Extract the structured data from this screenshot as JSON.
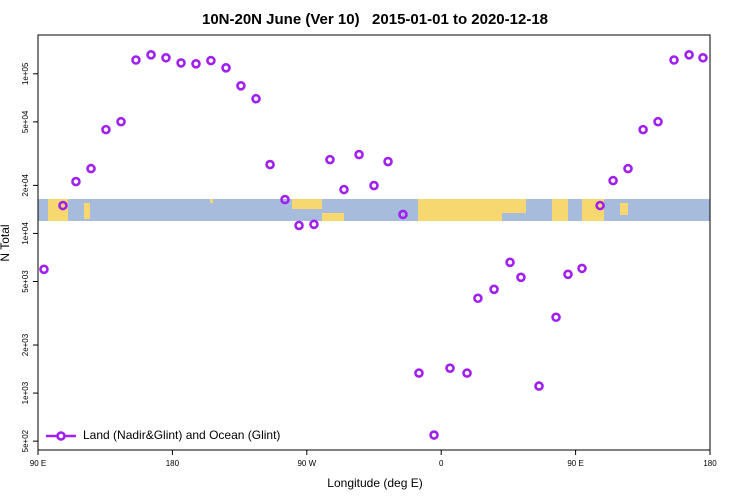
{
  "chart_data": {
    "type": "scatter",
    "title": "10N-20N June (Ver 10)   2015-01-01 to 2020-12-18",
    "x_label": "Longitude (deg E)",
    "y_label": "N Total",
    "ylog": true,
    "legend_position": "bottom-left",
    "xlim": [
      90,
      540
    ],
    "ylim": [
      440,
      175000
    ],
    "xticks": [
      {
        "value": 90,
        "label": "90 E"
      },
      180,
      {
        "value": 270,
        "label": "90 W"
      },
      {
        "value": 360,
        "label": "0"
      },
      {
        "value": 450,
        "label": "90 E"
      },
      {
        "value": 540,
        "label": "180"
      }
    ],
    "yticks": [
      {
        "value": 500,
        "label": "5e+02"
      },
      {
        "value": 1000,
        "label": "1e+03"
      },
      {
        "value": 2000,
        "label": "2e+03"
      },
      {
        "value": 5000,
        "label": "5e+03"
      },
      {
        "value": 10000,
        "label": "1e+04"
      },
      {
        "value": 20000,
        "label": "2e+04"
      },
      {
        "value": 50000,
        "label": "5e+04"
      },
      {
        "value": 100000,
        "label": "1e+05"
      }
    ],
    "series": [
      {
        "name": "Land (Nadir&Glint) and Ocean (Glint)",
        "color": "#a020f0",
        "x": [
          94,
          106.7,
          115.4,
          125.5,
          135.5,
          145.6,
          155.6,
          165.7,
          175.7,
          185.8,
          195.8,
          205.8,
          215.9,
          225.9,
          236,
          245.4,
          255.4,
          264.8,
          274.8,
          285.5,
          294.9,
          305,
          315,
          324.4,
          334.4,
          345.1,
          355.2,
          365.9,
          377.3,
          384.6,
          395.4,
          406.1,
          413.4,
          425.5,
          436.9,
          444.9,
          454.3,
          466.4,
          475.1,
          485.1,
          495.2,
          505.2,
          515.9,
          526,
          535.3
        ],
        "values": [
          5960,
          14960,
          21130,
          25480,
          44700,
          50100,
          122000,
          131500,
          126000,
          117000,
          115500,
          121000,
          109000,
          84100,
          69800,
          27000,
          16300,
          11220,
          11400,
          29000,
          18840,
          31200,
          19950,
          28200,
          13150,
          1334,
          546,
          1432,
          1334,
          3926,
          4467,
          6590,
          5310,
          1106,
          2985,
          5546,
          6040,
          14960,
          21430,
          25480,
          44700,
          50100,
          122000,
          131500,
          126000
        ]
      }
    ]
  }
}
